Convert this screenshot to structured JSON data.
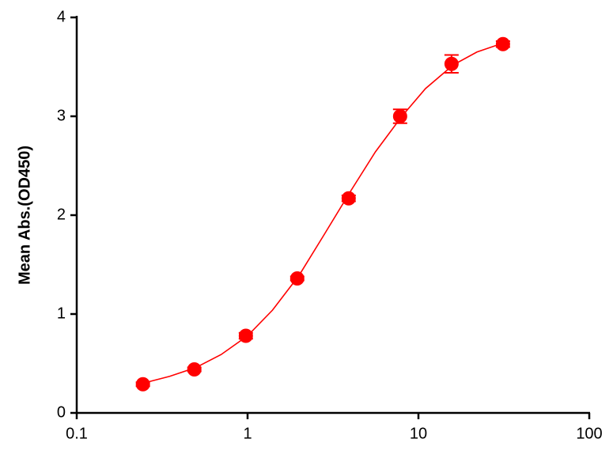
{
  "chart_data": {
    "type": "scatter",
    "y_label": "Mean Abs.(OD450)",
    "x_scale": "log",
    "xlim": [
      0.1,
      100
    ],
    "xticks": [
      0.1,
      1,
      10,
      100
    ],
    "ylim": [
      0,
      4
    ],
    "yticks": [
      0,
      1,
      2,
      3,
      4
    ],
    "series": [
      {
        "type": "scatter",
        "color": "#ff0000",
        "x": [
          0.244,
          0.488,
          0.977,
          1.953,
          3.906,
          7.8125,
          15.625,
          31.25
        ],
        "values": [
          0.29,
          0.44,
          0.78,
          1.36,
          2.17,
          3.0,
          3.53,
          3.73
        ],
        "errors": [
          0.02,
          0.02,
          0.03,
          0.02,
          0.03,
          0.07,
          0.09,
          0.03
        ]
      },
      {
        "type": "line",
        "color": "#ff0000",
        "x": [
          0.244,
          0.35,
          0.5,
          0.7,
          1,
          1.4,
          2,
          2.8,
          4,
          5.6,
          8,
          11,
          16,
          22,
          31.25
        ],
        "values": [
          0.3,
          0.37,
          0.46,
          0.59,
          0.78,
          1.04,
          1.39,
          1.8,
          2.24,
          2.64,
          3.0,
          3.28,
          3.52,
          3.65,
          3.74
        ]
      }
    ]
  }
}
